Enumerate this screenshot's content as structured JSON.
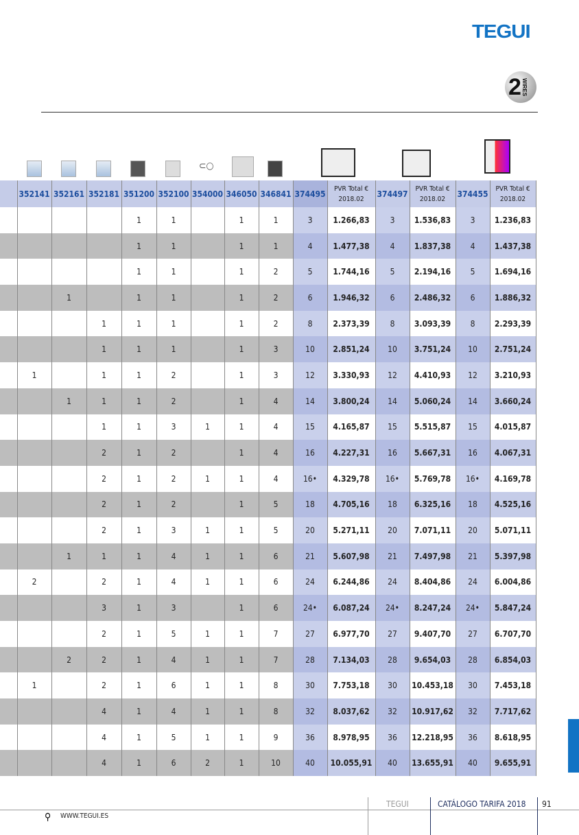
{
  "header": {
    "logo": "TEGUI",
    "badge_number": "2",
    "badge_text": "WIRES"
  },
  "table": {
    "columns": [
      "",
      "352141",
      "352161",
      "352181",
      "351200",
      "352100",
      "354000",
      "346050",
      "346841",
      "374495",
      "PVR Total € 2018.02",
      "374497",
      "PVR Total € 2018.02",
      "374455",
      "PVR Total € 2018.02"
    ],
    "pvr_line1": "PVR Total €",
    "pvr_line2": "2018.02",
    "rows": [
      [
        "",
        "",
        "",
        1,
        1,
        "",
        1,
        1,
        "3",
        "1.266,83",
        "3",
        "1.536,83",
        "3",
        "1.236,83"
      ],
      [
        "",
        "",
        "",
        1,
        1,
        "",
        1,
        1,
        "4",
        "1.477,38",
        "4",
        "1.837,38",
        "4",
        "1.437,38"
      ],
      [
        "",
        "",
        "",
        1,
        1,
        "",
        1,
        2,
        "5",
        "1.744,16",
        "5",
        "2.194,16",
        "5",
        "1.694,16"
      ],
      [
        "",
        1,
        "",
        1,
        1,
        "",
        1,
        2,
        "6",
        "1.946,32",
        "6",
        "2.486,32",
        "6",
        "1.886,32"
      ],
      [
        "",
        "",
        1,
        1,
        1,
        "",
        1,
        2,
        "8",
        "2.373,39",
        "8",
        "3.093,39",
        "8",
        "2.293,39"
      ],
      [
        "",
        "",
        1,
        1,
        1,
        "",
        1,
        3,
        "10",
        "2.851,24",
        "10",
        "3.751,24",
        "10",
        "2.751,24"
      ],
      [
        1,
        "",
        1,
        1,
        2,
        "",
        1,
        3,
        "12",
        "3.330,93",
        "12",
        "4.410,93",
        "12",
        "3.210,93"
      ],
      [
        "",
        1,
        1,
        1,
        2,
        "",
        1,
        4,
        "14",
        "3.800,24",
        "14",
        "5.060,24",
        "14",
        "3.660,24"
      ],
      [
        "",
        "",
        1,
        1,
        3,
        1,
        1,
        4,
        "15",
        "4.165,87",
        "15",
        "5.515,87",
        "15",
        "4.015,87"
      ],
      [
        "",
        "",
        2,
        1,
        2,
        "",
        1,
        4,
        "16",
        "4.227,31",
        "16",
        "5.667,31",
        "16",
        "4.067,31"
      ],
      [
        "",
        "",
        2,
        1,
        2,
        1,
        1,
        4,
        "16•",
        "4.329,78",
        "16•",
        "5.769,78",
        "16•",
        "4.169,78"
      ],
      [
        "",
        "",
        2,
        1,
        2,
        "",
        1,
        5,
        "18",
        "4.705,16",
        "18",
        "6.325,16",
        "18",
        "4.525,16"
      ],
      [
        "",
        "",
        2,
        1,
        3,
        1,
        1,
        5,
        "20",
        "5.271,11",
        "20",
        "7.071,11",
        "20",
        "5.071,11"
      ],
      [
        "",
        1,
        1,
        1,
        4,
        1,
        1,
        6,
        "21",
        "5.607,98",
        "21",
        "7.497,98",
        "21",
        "5.397,98"
      ],
      [
        2,
        "",
        2,
        1,
        4,
        1,
        1,
        6,
        "24",
        "6.244,86",
        "24",
        "8.404,86",
        "24",
        "6.004,86"
      ],
      [
        "",
        "",
        3,
        1,
        3,
        "",
        1,
        6,
        "24•",
        "6.087,24",
        "24•",
        "8.247,24",
        "24•",
        "5.847,24"
      ],
      [
        "",
        "",
        2,
        1,
        5,
        1,
        1,
        7,
        "27",
        "6.977,70",
        "27",
        "9.407,70",
        "27",
        "6.707,70"
      ],
      [
        "",
        2,
        2,
        1,
        4,
        1,
        1,
        7,
        "28",
        "7.134,03",
        "28",
        "9.654,03",
        "28",
        "6.854,03"
      ],
      [
        1,
        "",
        2,
        1,
        6,
        1,
        1,
        8,
        "30",
        "7.753,18",
        "30",
        "10.453,18",
        "30",
        "7.453,18"
      ],
      [
        "",
        "",
        4,
        1,
        4,
        1,
        1,
        8,
        "32",
        "8.037,62",
        "32",
        "10.917,62",
        "32",
        "7.717,62"
      ],
      [
        "",
        "",
        4,
        1,
        5,
        1,
        1,
        9,
        "36",
        "8.978,95",
        "36",
        "12.218,95",
        "36",
        "8.618,95"
      ],
      [
        "",
        "",
        4,
        1,
        6,
        2,
        1,
        10,
        "40",
        "10.055,91",
        "40",
        "13.655,91",
        "40",
        "9.655,91"
      ]
    ]
  },
  "footer": {
    "brand": "TEGUI",
    "catalog": "CATÁLOGO TARIFA 2018",
    "page": "91",
    "website": "WWW.TEGUI.ES"
  },
  "colors": {
    "brand": "#1273c4",
    "header_bg": "#c5cce8",
    "row_gray": "#bdbdbd"
  }
}
